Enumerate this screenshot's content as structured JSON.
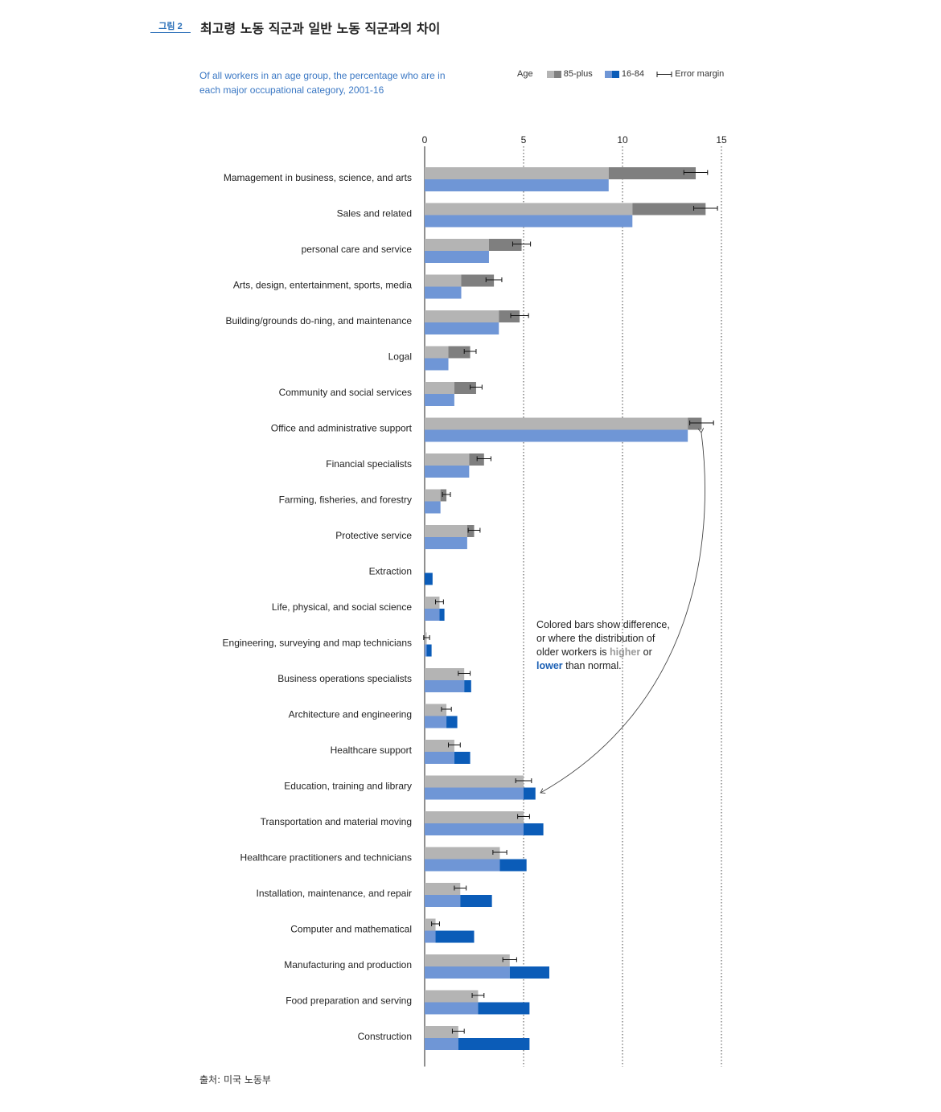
{
  "figure": {
    "tag": "그림 2",
    "title": "최고령 노동 직군과 일반 노동 직군과의 차이",
    "source": "출처: 미국 노동부"
  },
  "colors": {
    "base_grey": "#b4b4b4",
    "dark_grey": "#7f7f7f",
    "base_blue": "#6f96d6",
    "dark_blue": "#0b5cb8",
    "subtitle_blue": "#3b78c4"
  },
  "legend": {
    "title": "Age",
    "older_label": "85-plus",
    "younger_label": "16-84",
    "error_label": "Error margin"
  },
  "annotation": {
    "line1": "Colored bars show difference,",
    "line2": "or where the distribution of",
    "line3_a": "older workers is ",
    "higher": "higher",
    "line3_b": " or",
    "lower": "lower",
    "line4_b": " than normal."
  },
  "chart_data": {
    "type": "bar",
    "orientation": "horizontal",
    "subtitle": "Of all workers in an age group, the percentage who are in each major occupational category, 2001-16",
    "xlim": [
      0,
      15
    ],
    "xticks": [
      0,
      5,
      10,
      15
    ],
    "grid": "dotted vertical at 5, 10, 15",
    "legend_placement": "top-right",
    "series": [
      {
        "name": "85-plus",
        "values": [
          13.7,
          14.2,
          4.9,
          3.5,
          4.8,
          2.3,
          2.6,
          14.0,
          3.0,
          1.1,
          2.5,
          0.0,
          0.75,
          0.1,
          2.0,
          1.1,
          1.5,
          5.0,
          5.0,
          3.8,
          1.8,
          0.55,
          4.3,
          2.7,
          1.7
        ]
      },
      {
        "name": "16-84",
        "values": [
          9.3,
          10.5,
          3.25,
          1.85,
          3.75,
          1.2,
          1.5,
          13.3,
          2.25,
          0.8,
          2.15,
          0.4,
          1.0,
          0.35,
          2.35,
          1.65,
          2.3,
          5.6,
          6.0,
          5.15,
          3.4,
          2.5,
          6.3,
          5.3,
          5.3
        ]
      }
    ],
    "error_margin": [
      0.6,
      0.6,
      0.45,
      0.4,
      0.45,
      0.3,
      0.3,
      0.6,
      0.35,
      0.2,
      0.3,
      0.0,
      0.2,
      0.15,
      0.3,
      0.25,
      0.3,
      0.4,
      0.3,
      0.35,
      0.3,
      0.2,
      0.35,
      0.3,
      0.3
    ],
    "categories": [
      "Mamagement in business, science, and arts",
      "Sales and related",
      "personal care and service",
      "Arts, design, entertainment, sports, media",
      "Building/grounds do-ning, and maintenance",
      "Logal",
      "Community and social services",
      "Office and administrative support",
      "Financial specialists",
      "Farming, fisheries, and forestry",
      "Protective service",
      "Extraction",
      "Life, physical, and social science",
      "Engineering, surveying and map technicians",
      "Business operations specialists",
      "Architecture and engineering",
      "Healthcare support",
      "Education, training and library",
      "Transportation and material moving",
      "Healthcare practitioners and technicians",
      "Installation, maintenance, and repair",
      "Computer and mathematical",
      "Manufacturing and production",
      "Food preparation and serving",
      "Construction"
    ]
  }
}
